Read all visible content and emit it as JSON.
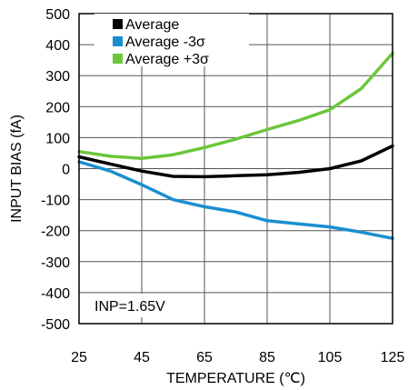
{
  "chart_data": {
    "type": "line",
    "xlabel": "TEMPERATURE (℃)",
    "ylabel": "INPUT BIAS (fA)",
    "xlim": [
      25,
      125
    ],
    "ylim": [
      -500,
      500
    ],
    "x_ticks": [
      25,
      45,
      65,
      85,
      105,
      125
    ],
    "y_ticks": [
      500,
      400,
      300,
      200,
      100,
      0,
      -100,
      -200,
      -300,
      -400,
      -500
    ],
    "grid": true,
    "legend_position": "top-left",
    "annotation": "INP=1.65V",
    "series": [
      {
        "name": "Average",
        "color": "#000000",
        "x": [
          25,
          35,
          45,
          55,
          65,
          75,
          85,
          95,
          105,
          115,
          125
        ],
        "y": [
          38,
          15,
          -8,
          -25,
          -26,
          -23,
          -20,
          -12,
          0,
          25,
          73
        ]
      },
      {
        "name": "Average -3σ",
        "color": "#1a8fd0",
        "x": [
          25,
          35,
          45,
          55,
          65,
          75,
          85,
          95,
          105,
          115,
          125
        ],
        "y": [
          22,
          -8,
          -52,
          -100,
          -123,
          -140,
          -168,
          -178,
          -188,
          -205,
          -225
        ]
      },
      {
        "name": "Average +3σ",
        "color": "#6cc63c",
        "x": [
          25,
          35,
          45,
          55,
          65,
          75,
          85,
          95,
          105,
          115,
          125
        ],
        "y": [
          55,
          40,
          33,
          45,
          68,
          95,
          126,
          155,
          190,
          258,
          372
        ]
      }
    ]
  }
}
